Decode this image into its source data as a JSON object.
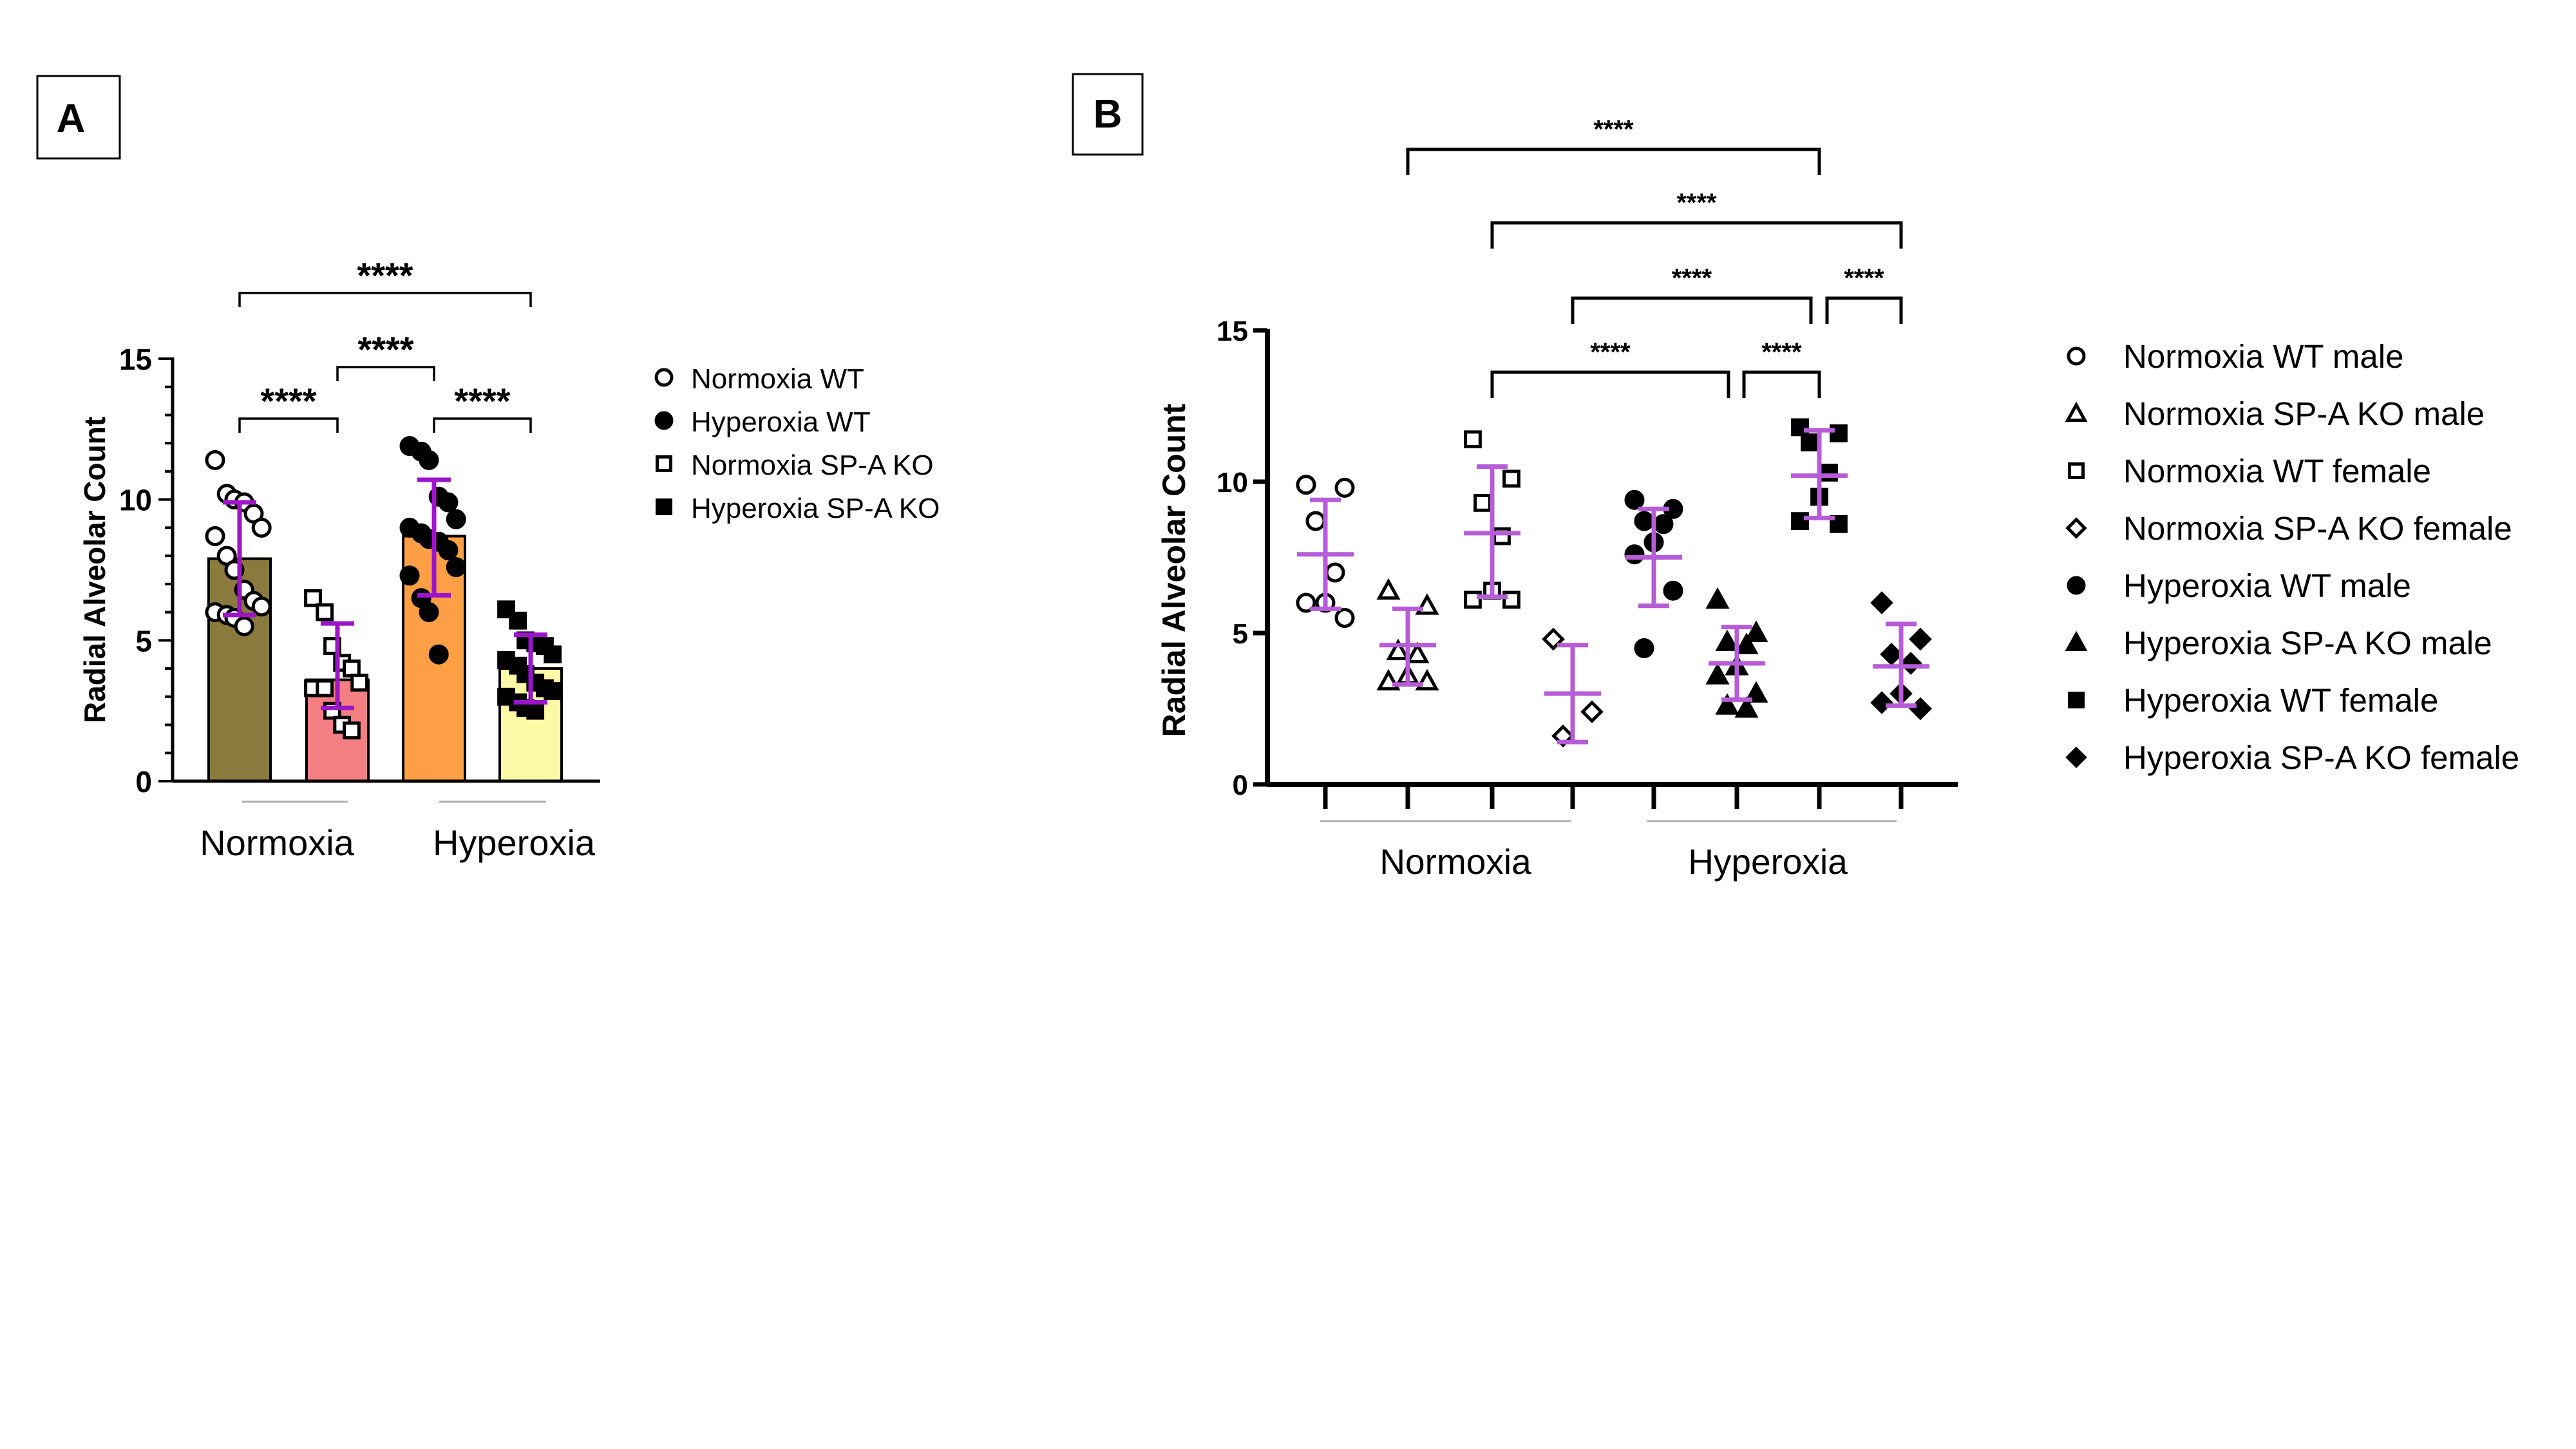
{
  "panels": {
    "A": {
      "label": "A"
    },
    "B": {
      "label": "B"
    }
  },
  "colors": {
    "purple_errbar_A": "#9a16c8",
    "purple_errbar_B": "#b65cd6",
    "bar_normoxia_wt": "#8b7a3e",
    "bar_normoxia_spa_ko": "#f47f82",
    "bar_hyperoxia_wt": "#ff9f45",
    "bar_hyperoxia_spa_ko": "#fdfaa7"
  },
  "chart_data": [
    {
      "type": "bar",
      "panel": "A",
      "ylabel": "Radial Alveolar Count",
      "ylim": [
        0,
        15
      ],
      "yticks": [
        0,
        5,
        10,
        15
      ],
      "group_labels": [
        "Normoxia",
        "Hyperoxia"
      ],
      "legend_position": "right",
      "series": [
        {
          "name": "Normoxia WT",
          "marker": "open-circle",
          "mean": 7.9,
          "sd_low": 5.9,
          "sd_high": 9.9,
          "points": [
            11.4,
            10.2,
            10.0,
            9.9,
            9.5,
            9.0,
            8.7,
            8.0,
            7.5,
            6.8,
            6.4,
            6.2,
            6.0,
            5.9,
            5.8,
            5.5
          ]
        },
        {
          "name": "Normoxia SP-A KO",
          "marker": "open-square",
          "mean": 3.6,
          "sd_low": 2.6,
          "sd_high": 5.6,
          "points": [
            6.5,
            6.0,
            4.8,
            4.2,
            4.0,
            3.5,
            3.3,
            3.3,
            2.5,
            2.0,
            1.8
          ]
        },
        {
          "name": "Hyperoxia WT",
          "marker": "filled-circle",
          "mean": 8.7,
          "sd_low": 6.6,
          "sd_high": 10.7,
          "points": [
            11.9,
            11.7,
            11.4,
            10.1,
            9.9,
            9.3,
            9.0,
            8.8,
            8.6,
            8.5,
            8.2,
            7.6,
            7.3,
            6.5,
            6.0,
            4.5
          ]
        },
        {
          "name": "Hyperoxia SP-A KO",
          "marker": "filled-square",
          "mean": 4.0,
          "sd_low": 2.8,
          "sd_high": 5.2,
          "points": [
            6.1,
            5.7,
            5.0,
            4.9,
            4.8,
            4.5,
            4.3,
            4.1,
            3.8,
            3.5,
            3.3,
            3.2,
            3.0,
            2.8,
            2.6,
            2.5
          ]
        }
      ],
      "significance": [
        {
          "from": "Normoxia WT",
          "to": "Normoxia SP-A KO",
          "label": "****"
        },
        {
          "from": "Hyperoxia WT",
          "to": "Hyperoxia SP-A KO",
          "label": "****"
        },
        {
          "from": "Normoxia SP-A KO",
          "to": "Hyperoxia WT",
          "label": "****"
        },
        {
          "from": "Normoxia WT",
          "to": "Hyperoxia SP-A KO",
          "label": "****"
        }
      ]
    },
    {
      "type": "scatter",
      "panel": "B",
      "ylabel": "Radial Alveolar Count",
      "ylim": [
        0,
        15
      ],
      "yticks": [
        0,
        5,
        10,
        15
      ],
      "group_labels": [
        "Normoxia",
        "Hyperoxia"
      ],
      "legend_position": "right",
      "series": [
        {
          "name": "Normoxia WT male",
          "marker": "open-circle",
          "mean": 7.6,
          "sd_low": 5.8,
          "sd_high": 9.4,
          "points": [
            9.9,
            9.8,
            8.7,
            7.0,
            6.0,
            6.0,
            5.5
          ]
        },
        {
          "name": "Normoxia SP-A KO male",
          "marker": "open-triangle",
          "mean": 4.6,
          "sd_low": 3.3,
          "sd_high": 5.8,
          "points": [
            6.4,
            5.9,
            4.4,
            4.3,
            3.6,
            3.4,
            3.4
          ]
        },
        {
          "name": "Normoxia WT female",
          "marker": "open-square",
          "mean": 8.3,
          "sd_low": 6.2,
          "sd_high": 10.5,
          "points": [
            11.4,
            10.1,
            9.3,
            8.2,
            6.4,
            6.1,
            6.1
          ]
        },
        {
          "name": "Normoxia SP-A KO female",
          "marker": "open-diamond",
          "mean": 3.0,
          "sd_low": 1.4,
          "sd_high": 4.6,
          "points": [
            4.8,
            2.4,
            1.6
          ]
        },
        {
          "name": "Hyperoxia WT male",
          "marker": "filled-circle",
          "mean": 7.5,
          "sd_low": 5.9,
          "sd_high": 9.1,
          "points": [
            9.4,
            9.1,
            8.7,
            8.6,
            8.0,
            7.6,
            6.4,
            4.5
          ]
        },
        {
          "name": "Hyperoxia SP-A KO male",
          "marker": "filled-triangle",
          "mean": 4.0,
          "sd_low": 2.8,
          "sd_high": 5.2,
          "points": [
            6.1,
            5.0,
            4.7,
            4.6,
            3.9,
            3.6,
            3.0,
            2.6,
            2.5
          ]
        },
        {
          "name": "Hyperoxia WT female",
          "marker": "filled-square",
          "mean": 10.2,
          "sd_low": 8.8,
          "sd_high": 11.7,
          "points": [
            11.8,
            11.6,
            11.3,
            10.3,
            9.5,
            8.7,
            8.6
          ]
        },
        {
          "name": "Hyperoxia SP-A KO female",
          "marker": "filled-diamond",
          "mean": 3.9,
          "sd_low": 2.6,
          "sd_high": 5.3,
          "points": [
            6.0,
            4.8,
            4.3,
            4.0,
            3.0,
            2.7,
            2.5
          ]
        }
      ],
      "significance": [
        {
          "from": "Normoxia SP-A KO male",
          "to": "Hyperoxia WT female",
          "label": "****"
        },
        {
          "from": "Normoxia WT female",
          "to": "Hyperoxia SP-A KO female",
          "label": "****"
        },
        {
          "from": "Normoxia SP-A KO female",
          "to": "Hyperoxia WT female",
          "label": "****"
        },
        {
          "from": "Hyperoxia WT female",
          "to": "Hyperoxia SP-A KO female",
          "label": "****"
        },
        {
          "from": "Normoxia WT female",
          "to": "Hyperoxia SP-A KO male",
          "label": "****"
        },
        {
          "from": "Hyperoxia SP-A KO male",
          "to": "Hyperoxia WT female",
          "label": "****"
        }
      ]
    }
  ]
}
